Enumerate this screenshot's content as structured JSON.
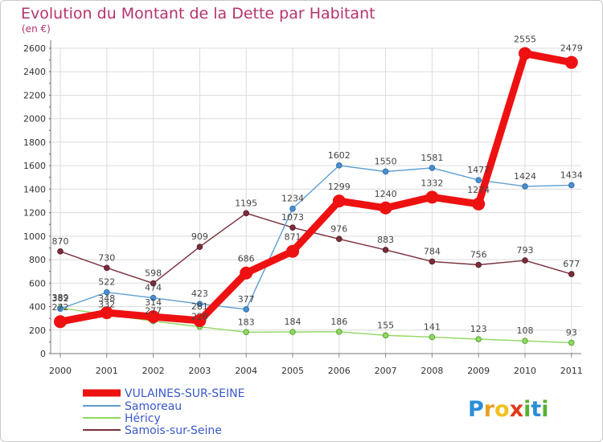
{
  "chart_data": {
    "type": "line",
    "title": "Evolution du Montant de la Dette par Habitant",
    "subtitle": "(en €)",
    "categories": [
      "2000",
      "2001",
      "2002",
      "2003",
      "2004",
      "2005",
      "2006",
      "2007",
      "2008",
      "2009",
      "2010",
      "2011"
    ],
    "ylim": [
      0,
      2600
    ],
    "yticks": [
      0,
      200,
      400,
      600,
      800,
      1000,
      1200,
      1400,
      1600,
      1800,
      2000,
      2200,
      2400,
      2600
    ],
    "grid": true,
    "legend_position": "bottom-left",
    "series": [
      {
        "name": "VULAINES-SUR-SEINE",
        "color": "#ee1111",
        "values": [
          272,
          348,
          314,
          281,
          686,
          871,
          1299,
          1240,
          1332,
          1274,
          2555,
          2479
        ]
      },
      {
        "name": "Samoreau",
        "color": "#5e9fd1",
        "values": [
          382,
          522,
          474,
          423,
          377,
          1234,
          1602,
          1550,
          1581,
          1477,
          1424,
          1434
        ]
      },
      {
        "name": "Héricy",
        "color": "#90d860",
        "values": [
          389,
          332,
          277,
          228,
          183,
          184,
          186,
          155,
          141,
          123,
          108,
          93
        ]
      },
      {
        "name": "Samois-sur-Seine",
        "color": "#7a2e3c",
        "values": [
          870,
          730,
          598,
          909,
          1195,
          1073,
          976,
          883,
          784,
          756,
          793,
          677
        ]
      }
    ]
  },
  "logo": {
    "text": "Proxiti",
    "letters": [
      "P",
      "r",
      "o",
      "x",
      "i",
      "t",
      "i"
    ],
    "colors": [
      "#2a8fd8",
      "#e8a020",
      "#f0c020",
      "#e03a1a",
      "#58b030",
      "#2a8fd8",
      "#58b030"
    ]
  }
}
